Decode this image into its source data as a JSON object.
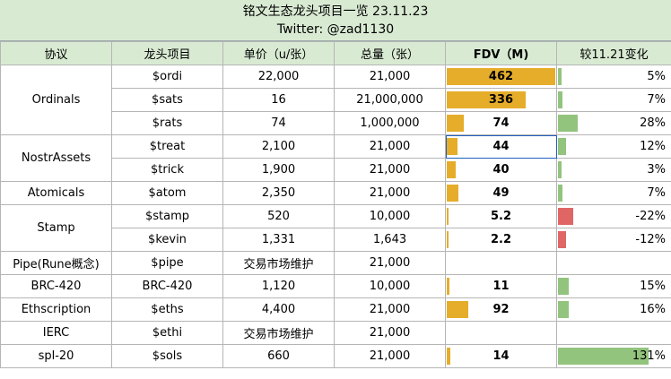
{
  "header": {
    "title": "铭文生态龙头项目一览  23.11.23",
    "subtitle": "Twitter: @zad1130"
  },
  "columns": [
    "协议",
    "龙头项目",
    "单价（u/张）",
    "总量（张）",
    "FDV（M)",
    "较11.21变化"
  ],
  "colors": {
    "header_bg": "#d9ead3",
    "fdv_bar": "#e5ad2a",
    "change_up": "#93c47d",
    "change_down": "#e06666"
  },
  "groups": [
    {
      "protocol": "Ordinals",
      "rows": [
        {
          "project": "$ordi",
          "price": "22,000",
          "supply": "21,000",
          "fdv": "462",
          "fdv_num": 462,
          "change": "5%",
          "change_num": 5
        },
        {
          "project": "$sats",
          "price": "16",
          "supply": "21,000,000",
          "fdv": "336",
          "fdv_num": 336,
          "change": "7%",
          "change_num": 7
        },
        {
          "project": "$rats",
          "price": "74",
          "supply": "1,000,000",
          "fdv": "74",
          "fdv_num": 74,
          "change": "28%",
          "change_num": 28
        }
      ]
    },
    {
      "protocol": "NostrAssets",
      "rows": [
        {
          "project": "$treat",
          "price": "2,100",
          "supply": "21,000",
          "fdv": "44",
          "fdv_num": 44,
          "change": "12%",
          "change_num": 12
        },
        {
          "project": "$trick",
          "price": "1,900",
          "supply": "21,000",
          "fdv": "40",
          "fdv_num": 40,
          "change": "3%",
          "change_num": 3
        }
      ]
    },
    {
      "protocol": "Atomicals",
      "rows": [
        {
          "project": "$atom",
          "price": "2,350",
          "supply": "21,000",
          "fdv": "49",
          "fdv_num": 49,
          "change": "7%",
          "change_num": 7
        }
      ]
    },
    {
      "protocol": "Stamp",
      "rows": [
        {
          "project": "$stamp",
          "price": "520",
          "supply": "10,000",
          "fdv": "5.2",
          "fdv_num": 5.2,
          "change": "-22%",
          "change_num": -22
        },
        {
          "project": "$kevin",
          "price": "1,331",
          "supply": "1,643",
          "fdv": "2.2",
          "fdv_num": 2.2,
          "change": "-12%",
          "change_num": -12
        }
      ]
    },
    {
      "protocol": "Pipe(Rune概念)",
      "rows": [
        {
          "project": "$pipe",
          "price": "交易市场维护",
          "supply": "21,000",
          "fdv": "",
          "fdv_num": 0,
          "change": "",
          "change_num": 0
        }
      ]
    },
    {
      "protocol": "BRC-420",
      "rows": [
        {
          "project": "BRC-420",
          "price": "1,120",
          "supply": "10,000",
          "fdv": "11",
          "fdv_num": 11,
          "change": "15%",
          "change_num": 15
        }
      ]
    },
    {
      "protocol": "Ethscription",
      "rows": [
        {
          "project": "$eths",
          "price": "4,400",
          "supply": "21,000",
          "fdv": "92",
          "fdv_num": 92,
          "change": "16%",
          "change_num": 16
        }
      ]
    },
    {
      "protocol": "IERC",
      "rows": [
        {
          "project": "$ethi",
          "price": "交易市场维护",
          "supply": "21,000",
          "fdv": "",
          "fdv_num": 0,
          "change": "",
          "change_num": 0
        }
      ]
    },
    {
      "protocol": "spl-20",
      "rows": [
        {
          "project": "$sols",
          "price": "660",
          "supply": "21,000",
          "fdv": "14",
          "fdv_num": 14,
          "change": "131%",
          "change_num": 131
        }
      ]
    }
  ]
}
